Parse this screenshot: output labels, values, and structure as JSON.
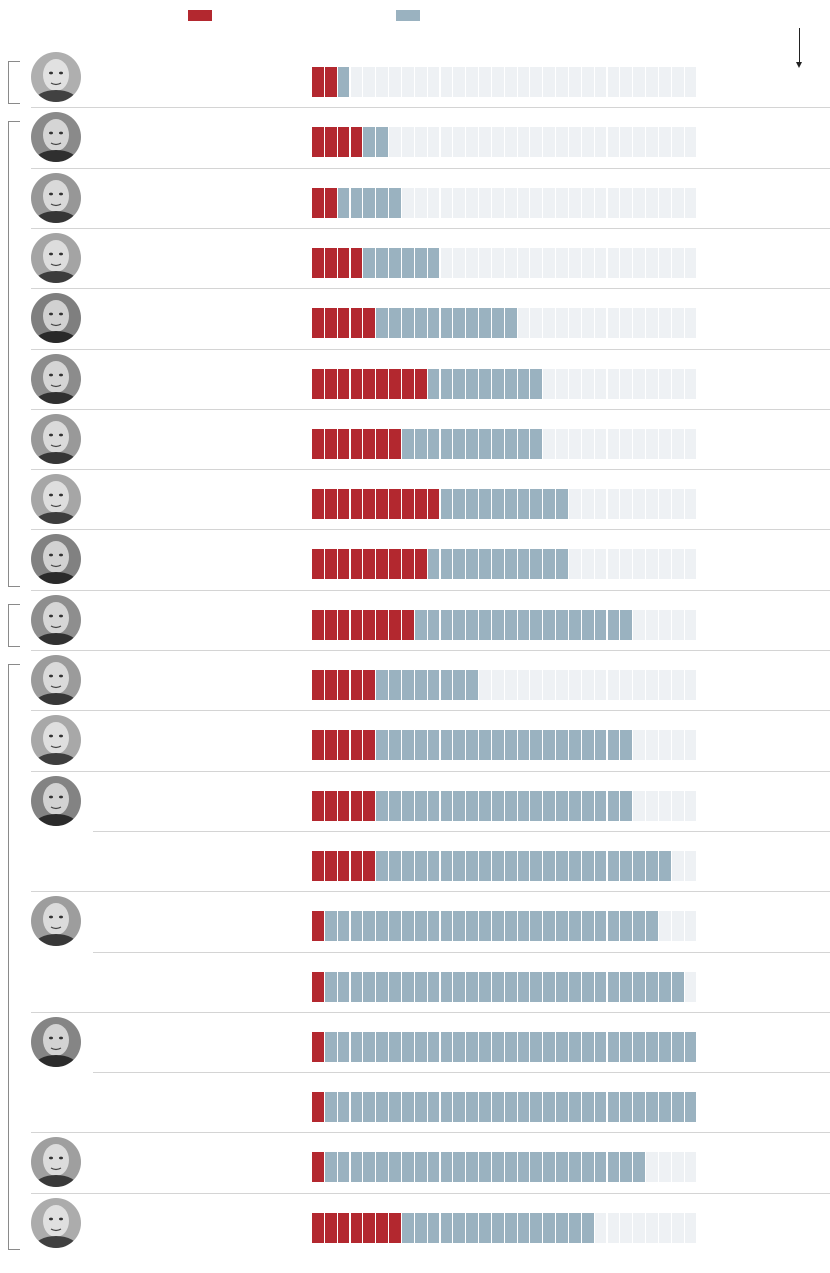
{
  "colors": {
    "red": "#b3282f",
    "blue": "#9ab2c0",
    "empty": "#eef1f4",
    "separator": "#d4d4d4",
    "bracket": "#8a8a8a"
  },
  "legend": {
    "red_label": "",
    "blue_label": ""
  },
  "chart_data": {
    "type": "bar",
    "stacked": true,
    "units_total": 30,
    "categories": [
      "",
      "",
      "",
      "",
      "",
      "",
      "",
      "",
      "",
      "",
      "",
      "",
      "",
      "",
      "",
      "",
      "",
      "",
      "",
      ""
    ],
    "series": [
      {
        "values": [
          2,
          4,
          2,
          4,
          5,
          9,
          7,
          10,
          9,
          8,
          5,
          5,
          5,
          5,
          1,
          1,
          1,
          1,
          1,
          7
        ]
      },
      {
        "values": [
          1,
          2,
          5,
          6,
          11,
          9,
          11,
          10,
          11,
          17,
          8,
          20,
          20,
          23,
          26,
          28,
          29,
          29,
          25,
          15
        ]
      }
    ],
    "groups": [
      {
        "first": 0,
        "last": 0
      },
      {
        "first": 1,
        "last": 8
      },
      {
        "first": 9,
        "last": 9
      },
      {
        "first": 10,
        "last": 19
      }
    ]
  },
  "rows": [
    {
      "portrait": true
    },
    {
      "portrait": true
    },
    {
      "portrait": true
    },
    {
      "portrait": true
    },
    {
      "portrait": true
    },
    {
      "portrait": true
    },
    {
      "portrait": true
    },
    {
      "portrait": true
    },
    {
      "portrait": true
    },
    {
      "portrait": true
    },
    {
      "portrait": true
    },
    {
      "portrait": true
    },
    {
      "portrait": true
    },
    {
      "portrait": false
    },
    {
      "portrait": true
    },
    {
      "portrait": false
    },
    {
      "portrait": true
    },
    {
      "portrait": false
    },
    {
      "portrait": true
    },
    {
      "portrait": true
    }
  ]
}
